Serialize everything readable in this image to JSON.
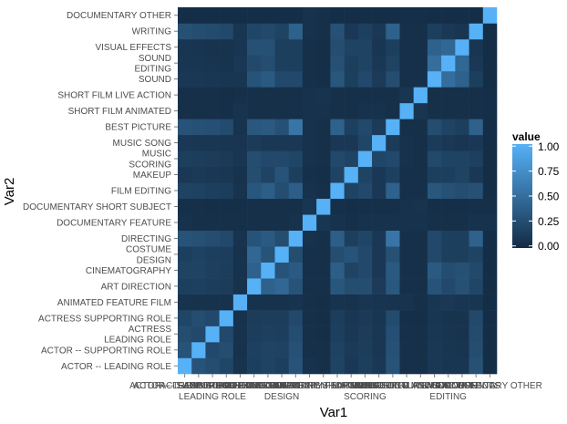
{
  "chart_data": {
    "type": "heatmap",
    "xlabel": "Var1",
    "ylabel": "Var2",
    "categories": [
      "ACTOR -- LEADING ROLE",
      "ACTOR -- SUPPORTING ROLE",
      "ACTRESS\nLEADING ROLE",
      "ACTRESS SUPPORTING ROLE",
      "ANIMATED FEATURE FILM",
      "ART DIRECTION",
      "CINEMATOGRAPHY",
      "COSTUME\nDESIGN",
      "DIRECTING",
      "DOCUMENTARY FEATURE",
      "DOCUMENTARY SHORT SUBJECT",
      "FILM EDITING",
      "MAKEUP",
      "MUSIC\nSCORING",
      "MUSIC SONG",
      "BEST PICTURE",
      "SHORT FILM ANIMATED",
      "SHORT FILM LIVE ACTION",
      "SOUND",
      "SOUND\nEDITING",
      "VISUAL EFFECTS",
      "WRITING",
      "DOCUMENTARY OTHER"
    ],
    "x_tick_labels_visible": [
      "ACTOR -- SUPPORTING ROLE",
      "LEADING ROLE",
      "DESIGN",
      "SCORING",
      "EDITING",
      "DOCUMENTARY OTHER"
    ],
    "values": [
      [
        1.0,
        0.3,
        0.25,
        0.2,
        0.06,
        0.15,
        0.18,
        0.15,
        0.3,
        0.05,
        0.04,
        0.18,
        0.1,
        0.15,
        0.1,
        0.3,
        0.04,
        0.04,
        0.1,
        0.08,
        0.08,
        0.28,
        0.02
      ],
      [
        0.3,
        1.0,
        0.22,
        0.25,
        0.05,
        0.16,
        0.18,
        0.17,
        0.28,
        0.04,
        0.04,
        0.17,
        0.11,
        0.14,
        0.09,
        0.28,
        0.04,
        0.04,
        0.1,
        0.08,
        0.07,
        0.25,
        0.02
      ],
      [
        0.25,
        0.22,
        1.0,
        0.22,
        0.05,
        0.14,
        0.16,
        0.15,
        0.25,
        0.04,
        0.03,
        0.15,
        0.1,
        0.13,
        0.09,
        0.27,
        0.04,
        0.04,
        0.09,
        0.07,
        0.06,
        0.24,
        0.02
      ],
      [
        0.2,
        0.25,
        0.22,
        1.0,
        0.05,
        0.13,
        0.14,
        0.14,
        0.22,
        0.04,
        0.03,
        0.14,
        0.09,
        0.11,
        0.08,
        0.24,
        0.03,
        0.03,
        0.08,
        0.06,
        0.06,
        0.22,
        0.02
      ],
      [
        0.06,
        0.05,
        0.05,
        0.05,
        1.0,
        0.05,
        0.05,
        0.05,
        0.06,
        0.04,
        0.03,
        0.06,
        0.05,
        0.08,
        0.07,
        0.06,
        0.06,
        0.04,
        0.08,
        0.1,
        0.08,
        0.08,
        0.02
      ],
      [
        0.15,
        0.16,
        0.14,
        0.13,
        0.05,
        1.0,
        0.4,
        0.45,
        0.3,
        0.04,
        0.04,
        0.32,
        0.25,
        0.25,
        0.12,
        0.33,
        0.04,
        0.04,
        0.3,
        0.22,
        0.28,
        0.2,
        0.02
      ],
      [
        0.18,
        0.18,
        0.16,
        0.14,
        0.05,
        0.4,
        1.0,
        0.3,
        0.35,
        0.04,
        0.04,
        0.38,
        0.18,
        0.22,
        0.1,
        0.35,
        0.04,
        0.04,
        0.35,
        0.25,
        0.28,
        0.22,
        0.02
      ],
      [
        0.15,
        0.17,
        0.15,
        0.14,
        0.05,
        0.45,
        0.3,
        1.0,
        0.25,
        0.04,
        0.04,
        0.25,
        0.3,
        0.22,
        0.1,
        0.28,
        0.04,
        0.04,
        0.22,
        0.15,
        0.15,
        0.18,
        0.02
      ],
      [
        0.3,
        0.28,
        0.25,
        0.22,
        0.06,
        0.3,
        0.35,
        0.25,
        1.0,
        0.05,
        0.04,
        0.38,
        0.15,
        0.2,
        0.1,
        0.55,
        0.04,
        0.04,
        0.22,
        0.15,
        0.15,
        0.4,
        0.02
      ],
      [
        0.05,
        0.04,
        0.04,
        0.04,
        0.04,
        0.04,
        0.04,
        0.04,
        0.05,
        1.0,
        0.08,
        0.05,
        0.04,
        0.05,
        0.05,
        0.05,
        0.05,
        0.05,
        0.04,
        0.04,
        0.04,
        0.05,
        0.05
      ],
      [
        0.04,
        0.04,
        0.03,
        0.03,
        0.03,
        0.04,
        0.04,
        0.04,
        0.04,
        0.08,
        1.0,
        0.04,
        0.03,
        0.04,
        0.04,
        0.04,
        0.05,
        0.06,
        0.03,
        0.03,
        0.03,
        0.04,
        0.04
      ],
      [
        0.18,
        0.17,
        0.15,
        0.14,
        0.06,
        0.32,
        0.38,
        0.25,
        0.38,
        0.05,
        0.04,
        1.0,
        0.18,
        0.22,
        0.1,
        0.4,
        0.04,
        0.04,
        0.32,
        0.28,
        0.25,
        0.28,
        0.02
      ],
      [
        0.1,
        0.11,
        0.1,
        0.09,
        0.05,
        0.25,
        0.18,
        0.3,
        0.15,
        0.04,
        0.03,
        0.18,
        1.0,
        0.18,
        0.1,
        0.16,
        0.04,
        0.04,
        0.15,
        0.15,
        0.18,
        0.1,
        0.02
      ],
      [
        0.15,
        0.14,
        0.13,
        0.11,
        0.08,
        0.25,
        0.22,
        0.22,
        0.2,
        0.05,
        0.04,
        0.22,
        0.18,
        1.0,
        0.2,
        0.22,
        0.05,
        0.04,
        0.22,
        0.18,
        0.18,
        0.16,
        0.02
      ],
      [
        0.1,
        0.09,
        0.09,
        0.08,
        0.07,
        0.12,
        0.1,
        0.1,
        0.1,
        0.05,
        0.04,
        0.1,
        0.1,
        0.2,
        1.0,
        0.12,
        0.05,
        0.04,
        0.12,
        0.1,
        0.08,
        0.1,
        0.02
      ],
      [
        0.3,
        0.28,
        0.27,
        0.24,
        0.06,
        0.33,
        0.35,
        0.28,
        0.55,
        0.05,
        0.04,
        0.4,
        0.16,
        0.22,
        0.12,
        1.0,
        0.04,
        0.04,
        0.25,
        0.18,
        0.15,
        0.4,
        0.02
      ],
      [
        0.04,
        0.04,
        0.04,
        0.03,
        0.06,
        0.04,
        0.04,
        0.04,
        0.04,
        0.05,
        0.05,
        0.04,
        0.04,
        0.05,
        0.05,
        0.04,
        1.0,
        0.08,
        0.04,
        0.04,
        0.04,
        0.04,
        0.03
      ],
      [
        0.04,
        0.04,
        0.04,
        0.03,
        0.04,
        0.04,
        0.04,
        0.04,
        0.04,
        0.05,
        0.06,
        0.04,
        0.04,
        0.04,
        0.04,
        0.04,
        0.08,
        1.0,
        0.04,
        0.04,
        0.04,
        0.04,
        0.03
      ],
      [
        0.1,
        0.1,
        0.09,
        0.08,
        0.08,
        0.3,
        0.35,
        0.22,
        0.22,
        0.04,
        0.03,
        0.32,
        0.15,
        0.22,
        0.12,
        0.25,
        0.04,
        0.04,
        1.0,
        0.5,
        0.4,
        0.15,
        0.02
      ],
      [
        0.08,
        0.08,
        0.07,
        0.06,
        0.1,
        0.22,
        0.25,
        0.15,
        0.15,
        0.04,
        0.03,
        0.28,
        0.15,
        0.18,
        0.1,
        0.18,
        0.04,
        0.04,
        0.5,
        1.0,
        0.45,
        0.1,
        0.02
      ],
      [
        0.08,
        0.07,
        0.06,
        0.06,
        0.08,
        0.28,
        0.28,
        0.15,
        0.15,
        0.04,
        0.03,
        0.25,
        0.18,
        0.18,
        0.08,
        0.15,
        0.04,
        0.04,
        0.4,
        0.45,
        1.0,
        0.08,
        0.02
      ],
      [
        0.28,
        0.25,
        0.24,
        0.22,
        0.08,
        0.2,
        0.22,
        0.18,
        0.4,
        0.05,
        0.04,
        0.28,
        0.1,
        0.16,
        0.1,
        0.4,
        0.04,
        0.04,
        0.15,
        0.1,
        0.08,
        1.0,
        0.02
      ],
      [
        0.02,
        0.02,
        0.02,
        0.02,
        0.02,
        0.02,
        0.02,
        0.02,
        0.02,
        0.05,
        0.04,
        0.02,
        0.02,
        0.02,
        0.02,
        0.02,
        0.03,
        0.03,
        0.02,
        0.02,
        0.02,
        0.02,
        1.0
      ]
    ],
    "colorscale": {
      "low": "#132B43",
      "high": "#56B1F7",
      "range": [
        0,
        1
      ]
    },
    "legend": {
      "title": "value",
      "ticks": [
        "1.00",
        "0.75",
        "0.50",
        "0.25",
        "0.00"
      ],
      "position": "right"
    },
    "panel_background": "#EBEBEB",
    "grid": false
  }
}
